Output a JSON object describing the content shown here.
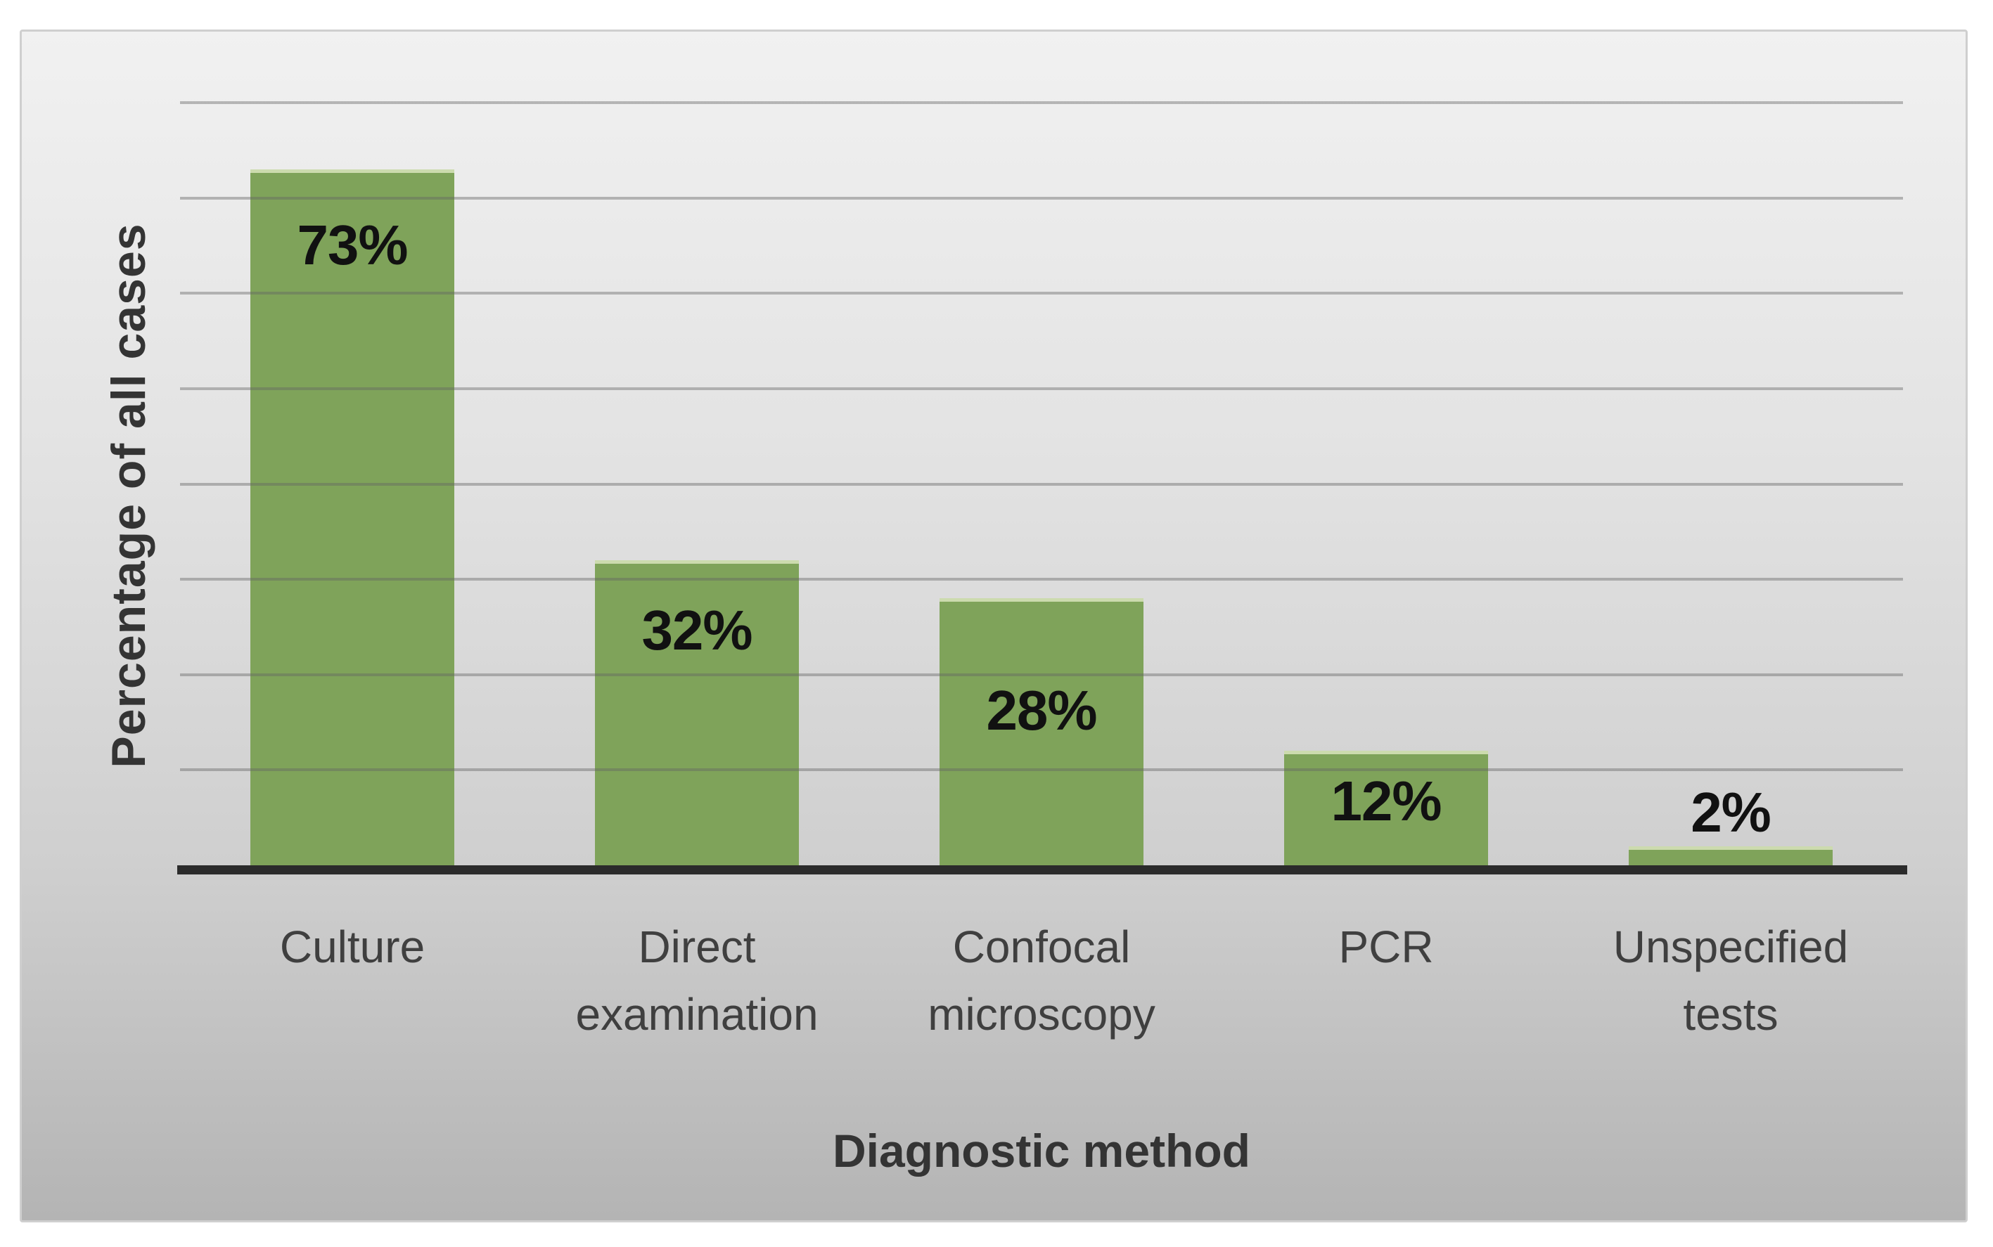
{
  "chart_data": {
    "type": "bar",
    "title": "",
    "categories": [
      "Culture",
      "Direct examination",
      "Confocal microscopy",
      "PCR",
      "Unspecified tests"
    ],
    "values": [
      73,
      32,
      28,
      12,
      2
    ],
    "data_labels": [
      "73%",
      "32%",
      "28%",
      "12%",
      "2%"
    ],
    "label_placement": [
      "inside",
      "inside",
      "inside",
      "inside",
      "outside"
    ],
    "xlabel": "Diagnostic method",
    "ylabel": "Percentage of all cases",
    "ylim": [
      0,
      88
    ],
    "gridline_percents": [
      10,
      20,
      30,
      40,
      50,
      60,
      70,
      80
    ],
    "grid": "horizontal-only",
    "legend": "none",
    "y_tick_labels_visible": false,
    "bar_color": "#7fa35a",
    "bar_top_edge_color": "#ccdbae",
    "gridline_color": "#6e6e6e",
    "axis_line_color": "#2b2b2b",
    "panel_background_top": "#f1f1f1",
    "panel_background_bottom": "#b4b4b4",
    "text_color": "#343434"
  }
}
